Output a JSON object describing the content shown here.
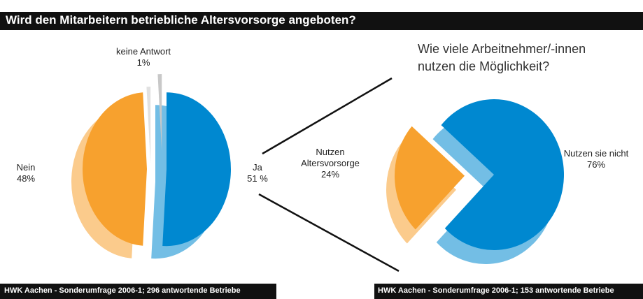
{
  "title": "Wird den Mitarbeitern betriebliche Altersvorsorge angeboten?",
  "chart_data": [
    {
      "type": "pie",
      "categories": [
        "Ja",
        "Nein",
        "keine Antwort"
      ],
      "values": [
        51,
        48,
        1
      ],
      "value_labels": [
        "51 %",
        "48%",
        "1%"
      ],
      "colors": [
        "#0088d0",
        "#f7a12e",
        "#c8c8c8"
      ],
      "source": "HWK Aachen - Sonderumfrage 2006-1; 296 antwortende Betriebe"
    },
    {
      "type": "pie",
      "title": "Wie viele Arbeitnehmer/-innen nutzen die Möglichkeit?",
      "categories": [
        "Nutzen sie nicht",
        "Nutzen Altersvorsorge"
      ],
      "values": [
        76,
        24
      ],
      "value_labels": [
        "76%",
        "24%"
      ],
      "colors": [
        "#0088d0",
        "#f7a12e"
      ],
      "source": "HWK Aachen - Sonderumfrage 2006-1; 153 antwortende Betriebe"
    }
  ]
}
